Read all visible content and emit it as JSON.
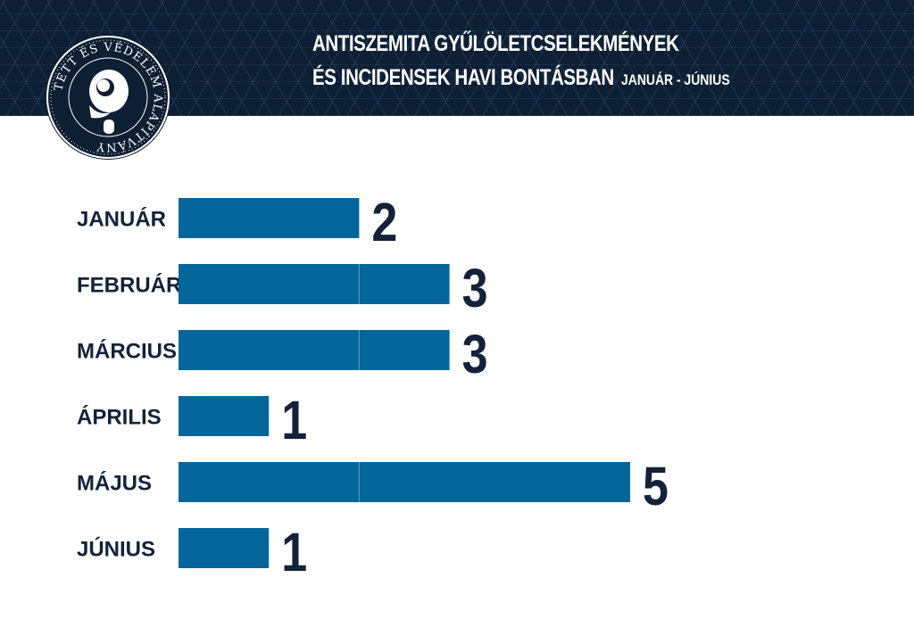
{
  "header": {
    "title_line1": "ANTISZEMITA GYŰLÖLETCSELEKMÉNYEK",
    "title_line2": "ÉS INCIDENSEK HAVI BONTÁSBAN",
    "subtitle": "JANUÁR - JÚNIUS"
  },
  "logo": {
    "ring_text": "TETT ÉS VÉDELEM ALAPÍTVÁNY"
  },
  "colors": {
    "header_bg": "#0f1f33",
    "bar": "#05669b",
    "text_dark": "#13223a"
  },
  "chart_data": {
    "type": "bar",
    "orientation": "horizontal",
    "title": "ANTISZEMITA GYŰLÖLETCSELEKMÉNYEK ÉS INCIDENSEK HAVI BONTÁSBAN",
    "subtitle": "JANUÁR - JÚNIUS",
    "categories": [
      "JANUÁR",
      "FEBRUÁR",
      "MÁRCIUS",
      "ÁPRILIS",
      "MÁJUS",
      "JÚNIUS"
    ],
    "values": [
      2,
      3,
      3,
      1,
      5,
      1
    ],
    "xlim": [
      0,
      5
    ],
    "grid": false,
    "legend": "none"
  }
}
